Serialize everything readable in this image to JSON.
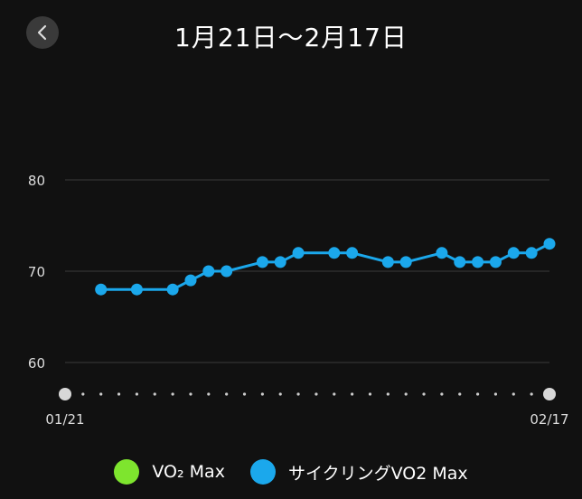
{
  "header": {
    "title": "1月21日～2月17日"
  },
  "colors": {
    "background": "#111111",
    "vo2max": "#7ee52e",
    "cycling": "#1ba8ec",
    "grid": "#3a3a3a",
    "axis_text": "#dddddd",
    "endpoint": "#d8d8d8"
  },
  "legend": {
    "items": [
      {
        "label": "VO₂ Max",
        "color": "#7ee52e"
      },
      {
        "label": "サイクリングVO2 Max",
        "color": "#1ba8ec"
      }
    ]
  },
  "chart_data": {
    "type": "line",
    "ylim": [
      56.5,
      82
    ],
    "yticks": [
      60,
      70,
      80
    ],
    "x_range": [
      0,
      27
    ],
    "x_labels": [
      {
        "x": 0,
        "label": "01/21"
      },
      {
        "x": 27,
        "label": "02/17"
      }
    ],
    "series": [
      {
        "name": "サイクリングVO2 Max",
        "color": "#1ba8ec",
        "x": [
          2,
          4,
          6,
          7,
          8,
          9,
          11,
          12,
          13,
          15,
          16,
          18,
          19,
          21,
          22,
          23,
          24,
          25,
          26,
          27
        ],
        "values": [
          68,
          68,
          68,
          69,
          70,
          70,
          71,
          71,
          72,
          72,
          72,
          71,
          71,
          72,
          71,
          71,
          71,
          72,
          72,
          73
        ]
      }
    ]
  }
}
